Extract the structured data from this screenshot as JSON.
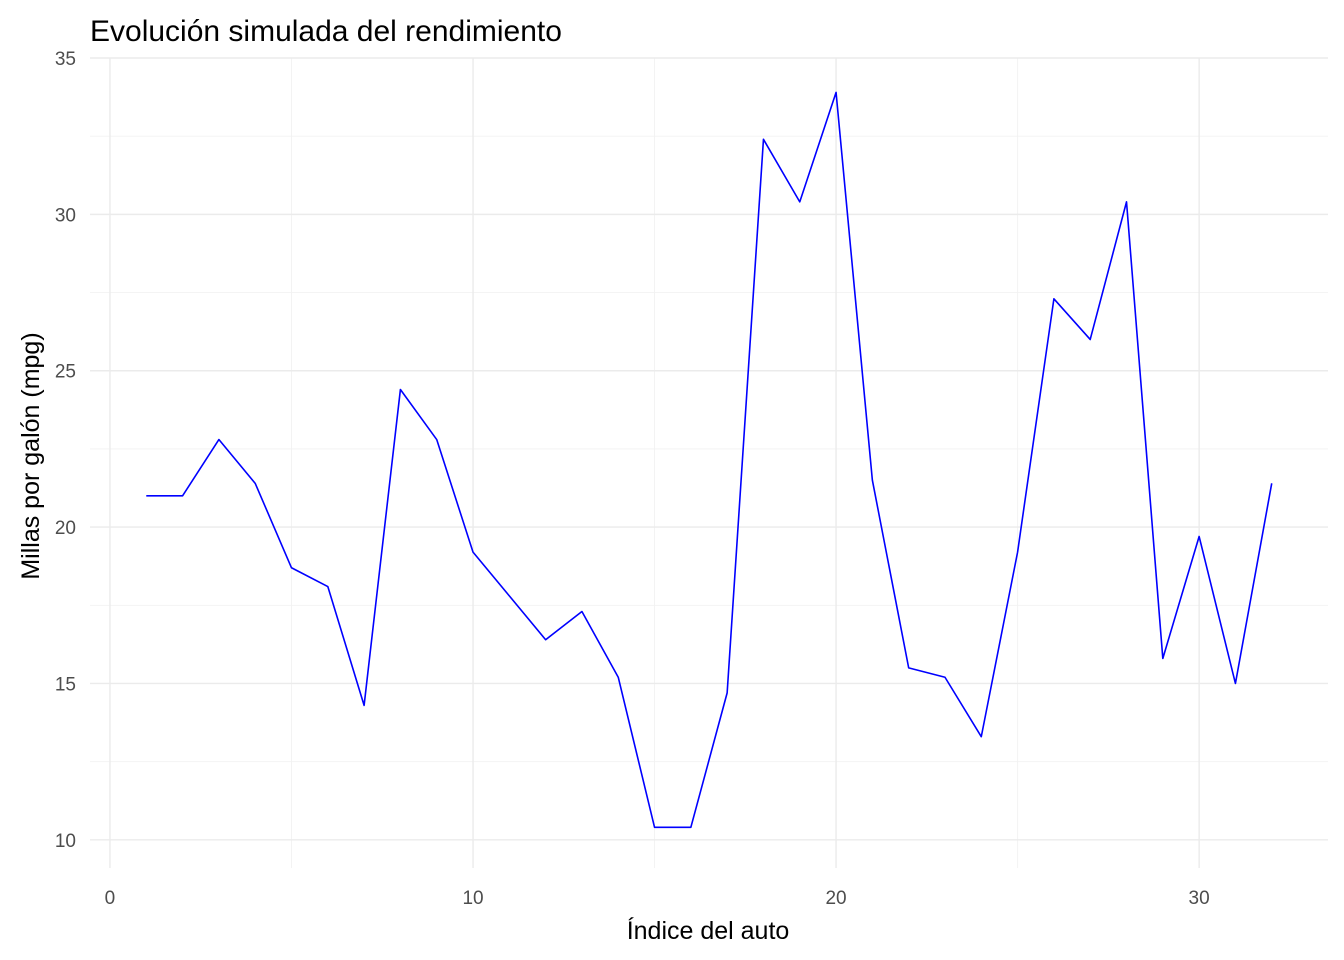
{
  "chart_data": {
    "type": "line",
    "title": "Evolución simulada del rendimiento",
    "xlabel": "Índice del auto",
    "ylabel": "Millas por galón (mpg)",
    "xlim": [
      -0.55,
      33.55
    ],
    "ylim": [
      9.1,
      35
    ],
    "x_ticks": [
      0,
      10,
      20,
      30
    ],
    "y_ticks": [
      10,
      15,
      20,
      25,
      30,
      35
    ],
    "x_minor_ticks": [
      5,
      15,
      25
    ],
    "y_minor_ticks": [
      12.5,
      17.5,
      22.5,
      27.5,
      32.5
    ],
    "grid": true,
    "line_color": "#0000ff",
    "series": [
      {
        "x": [
          1,
          2,
          3,
          4,
          5,
          6,
          7,
          8,
          9,
          10,
          11,
          12,
          13,
          14,
          15,
          16,
          17,
          18,
          19,
          20,
          21,
          22,
          23,
          24,
          25,
          26,
          27,
          28,
          29,
          30,
          31,
          32
        ],
        "values": [
          21.0,
          21.0,
          22.8,
          21.4,
          18.7,
          18.1,
          14.3,
          24.4,
          22.8,
          19.2,
          17.8,
          16.4,
          17.3,
          15.2,
          10.4,
          10.4,
          14.7,
          32.4,
          30.4,
          33.9,
          21.5,
          15.5,
          15.2,
          13.3,
          19.2,
          27.3,
          26.0,
          30.4,
          15.8,
          19.7,
          15.0,
          21.4
        ]
      }
    ]
  }
}
